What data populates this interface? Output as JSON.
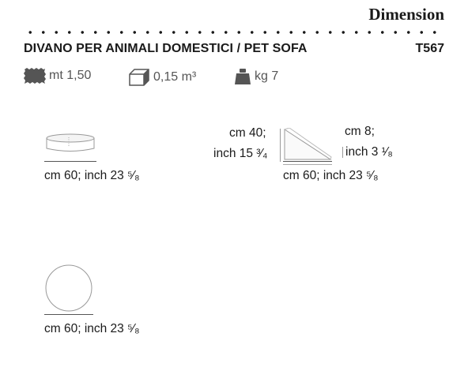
{
  "header": {
    "title": "Dimension"
  },
  "product": {
    "name": "DIVANO PER ANIMALI DOMESTICI / PET SOFA",
    "code": "T567"
  },
  "specs": {
    "fabric": {
      "icon": "fabric-swatch-icon",
      "value": "mt 1,50"
    },
    "volume": {
      "icon": "box-icon",
      "value": "0,15 m³"
    },
    "weight": {
      "icon": "weight-icon",
      "value": "kg 7"
    }
  },
  "views": {
    "top_left": {
      "icon": "cushion-side-view-icon",
      "width": "cm 60; inch 23 ⁵⁄₈"
    },
    "top_right": {
      "icon": "wedge-side-view-icon",
      "height_cm": "cm 40;",
      "height_inch": "inch 15 ³⁄₄",
      "depth_cm": "cm 8;",
      "depth_inch": "inch 3 ¹⁄₈",
      "width": "cm 60; inch 23 ⁵⁄₈"
    },
    "bottom_left": {
      "icon": "cushion-top-view-icon",
      "width": "cm 60; inch 23 ⁵⁄₈"
    }
  }
}
